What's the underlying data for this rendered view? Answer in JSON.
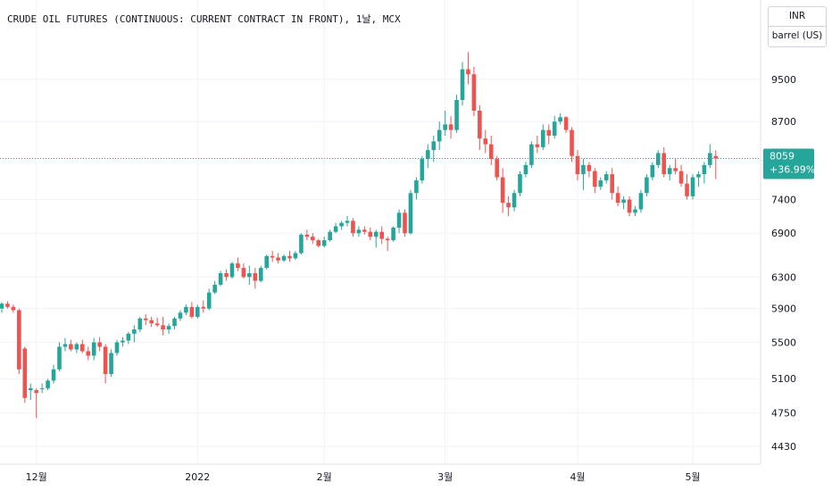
{
  "header": {
    "title": "CRUDE OIL FUTURES (CONTINUOUS: CURRENT CONTRACT IN FRONT), 1날, MCX"
  },
  "unit_selector": {
    "currency": "INR",
    "unit": "barrel (US)"
  },
  "last_price": {
    "value": "8059",
    "change": "+36.99%"
  },
  "colors": {
    "up": "#26a69a",
    "down": "#ef5350",
    "grid": "#f0f3fa",
    "axis_text": "#131722",
    "last_line": "#26a69a"
  },
  "chart_data": {
    "type": "candlestick",
    "title": "CRUDE OIL FUTURES (CONTINUOUS: CURRENT CONTRACT IN FRONT), 1날, MCX",
    "ylim": [
      4350,
      10400
    ],
    "y_ticks": [
      4430,
      4750,
      5100,
      5500,
      5900,
      6300,
      6900,
      7400,
      8059,
      8700,
      9500
    ],
    "y_tick_labels": [
      "4430",
      "4750",
      "5100",
      "5500",
      "5900",
      "6300",
      "6900",
      "7400",
      "",
      "8700",
      "9500"
    ],
    "x_ticks": [
      {
        "label": "12월",
        "index": 6
      },
      {
        "label": "2022",
        "index": 34
      },
      {
        "label": "2월",
        "index": 56
      },
      {
        "label": "3월",
        "index": 77
      },
      {
        "label": "4월",
        "index": 100
      },
      {
        "label": "5월",
        "index": 120
      }
    ],
    "candles": [
      [
        5900,
        5980,
        5850,
        5960
      ],
      [
        5960,
        5990,
        5900,
        5920
      ],
      [
        5920,
        5950,
        5850,
        5880
      ],
      [
        5880,
        5900,
        5150,
        5200
      ],
      [
        5430,
        5450,
        4850,
        4900
      ],
      [
        4980,
        5050,
        4880,
        5000
      ],
      [
        4980,
        5000,
        4700,
        4950
      ],
      [
        5000,
        5050,
        4950,
        5000
      ],
      [
        5000,
        5100,
        4980,
        5080
      ],
      [
        5080,
        5250,
        5050,
        5200
      ],
      [
        5200,
        5500,
        5180,
        5450
      ],
      [
        5450,
        5550,
        5400,
        5480
      ],
      [
        5480,
        5530,
        5400,
        5420
      ],
      [
        5420,
        5500,
        5380,
        5480
      ],
      [
        5480,
        5530,
        5380,
        5400
      ],
      [
        5400,
        5450,
        5300,
        5350
      ],
      [
        5350,
        5550,
        5300,
        5500
      ],
      [
        5500,
        5560,
        5400,
        5450
      ],
      [
        5450,
        5480,
        5050,
        5150
      ],
      [
        5150,
        5420,
        5120,
        5380
      ],
      [
        5380,
        5530,
        5350,
        5500
      ],
      [
        5500,
        5560,
        5450,
        5520
      ],
      [
        5520,
        5620,
        5480,
        5600
      ],
      [
        5600,
        5700,
        5500,
        5650
      ],
      [
        5650,
        5800,
        5620,
        5780
      ],
      [
        5780,
        5830,
        5700,
        5760
      ],
      [
        5760,
        5800,
        5680,
        5720
      ],
      [
        5720,
        5790,
        5680,
        5700
      ],
      [
        5700,
        5800,
        5580,
        5650
      ],
      [
        5650,
        5720,
        5600,
        5690
      ],
      [
        5690,
        5800,
        5650,
        5780
      ],
      [
        5780,
        5880,
        5750,
        5850
      ],
      [
        5850,
        5950,
        5820,
        5920
      ],
      [
        5920,
        5980,
        5780,
        5800
      ],
      [
        5800,
        5950,
        5780,
        5920
      ],
      [
        5920,
        6000,
        5850,
        5900
      ],
      [
        5900,
        6150,
        5880,
        6100
      ],
      [
        6100,
        6250,
        6080,
        6200
      ],
      [
        6200,
        6380,
        6180,
        6350
      ],
      [
        6350,
        6400,
        6250,
        6300
      ],
      [
        6300,
        6500,
        6280,
        6480
      ],
      [
        6480,
        6560,
        6380,
        6420
      ],
      [
        6420,
        6480,
        6280,
        6300
      ],
      [
        6300,
        6450,
        6200,
        6350
      ],
      [
        6350,
        6420,
        6150,
        6250
      ],
      [
        6250,
        6450,
        6230,
        6420
      ],
      [
        6420,
        6600,
        6400,
        6580
      ],
      [
        6580,
        6650,
        6500,
        6560
      ],
      [
        6560,
        6620,
        6480,
        6520
      ],
      [
        6520,
        6600,
        6500,
        6580
      ],
      [
        6580,
        6650,
        6500,
        6550
      ],
      [
        6550,
        6650,
        6530,
        6620
      ],
      [
        6620,
        6900,
        6600,
        6880
      ],
      [
        6880,
        6950,
        6800,
        6850
      ],
      [
        6850,
        6900,
        6750,
        6800
      ],
      [
        6800,
        6820,
        6700,
        6720
      ],
      [
        6720,
        6850,
        6700,
        6800
      ],
      [
        6800,
        6950,
        6780,
        6920
      ],
      [
        6920,
        7050,
        6900,
        7000
      ],
      [
        7000,
        7080,
        6950,
        7050
      ],
      [
        7050,
        7150,
        7000,
        7080
      ],
      [
        7080,
        7120,
        6850,
        6900
      ],
      [
        6900,
        7000,
        6850,
        6950
      ],
      [
        6950,
        7000,
        6880,
        6920
      ],
      [
        6920,
        6980,
        6800,
        6850
      ],
      [
        6850,
        6950,
        6700,
        6920
      ],
      [
        6920,
        7000,
        6750,
        6820
      ],
      [
        6820,
        6850,
        6650,
        6800
      ],
      [
        6800,
        7000,
        6780,
        6980
      ],
      [
        6980,
        7250,
        6900,
        7200
      ],
      [
        7200,
        7250,
        6850,
        6900
      ],
      [
        6900,
        7550,
        6880,
        7500
      ],
      [
        7500,
        7750,
        7400,
        7700
      ],
      [
        7700,
        8100,
        7650,
        8050
      ],
      [
        8050,
        8300,
        7900,
        8200
      ],
      [
        8200,
        8450,
        8000,
        8350
      ],
      [
        8350,
        8700,
        8200,
        8550
      ],
      [
        8550,
        8900,
        8450,
        8650
      ],
      [
        8650,
        8800,
        8400,
        8550
      ],
      [
        8550,
        9200,
        8500,
        9100
      ],
      [
        9100,
        9850,
        9000,
        9700
      ],
      [
        9700,
        10050,
        9400,
        9600
      ],
      [
        9600,
        9750,
        8800,
        8900
      ],
      [
        8900,
        9000,
        8200,
        8400
      ],
      [
        8400,
        8550,
        8150,
        8300
      ],
      [
        8300,
        8450,
        7950,
        8050
      ],
      [
        8050,
        8100,
        7700,
        7750
      ],
      [
        7750,
        7900,
        7200,
        7350
      ],
      [
        7350,
        7450,
        7150,
        7280
      ],
      [
        7280,
        7550,
        7220,
        7500
      ],
      [
        7500,
        7850,
        7450,
        7800
      ],
      [
        7800,
        8000,
        7750,
        7950
      ],
      [
        7950,
        8350,
        7900,
        8300
      ],
      [
        8300,
        8450,
        8150,
        8250
      ],
      [
        8250,
        8650,
        8200,
        8550
      ],
      [
        8550,
        8650,
        8300,
        8450
      ],
      [
        8450,
        8800,
        8400,
        8700
      ],
      [
        8700,
        8850,
        8650,
        8780
      ],
      [
        8780,
        8800,
        8500,
        8550
      ],
      [
        8550,
        8600,
        8000,
        8100
      ],
      [
        8100,
        8200,
        7700,
        7800
      ],
      [
        7800,
        8050,
        7550,
        7950
      ],
      [
        7950,
        8000,
        7750,
        7850
      ],
      [
        7850,
        7900,
        7500,
        7600
      ],
      [
        7600,
        7750,
        7550,
        7700
      ],
      [
        7700,
        7850,
        7650,
        7800
      ],
      [
        7800,
        7900,
        7400,
        7500
      ],
      [
        7500,
        7600,
        7300,
        7350
      ],
      [
        7350,
        7450,
        7250,
        7400
      ],
      [
        7400,
        7450,
        7150,
        7200
      ],
      [
        7200,
        7300,
        7150,
        7250
      ],
      [
        7250,
        7550,
        7200,
        7500
      ],
      [
        7500,
        7800,
        7450,
        7750
      ],
      [
        7750,
        8000,
        7700,
        7950
      ],
      [
        7950,
        8200,
        7900,
        8150
      ],
      [
        8150,
        8250,
        7750,
        7800
      ],
      [
        7800,
        7950,
        7700,
        7900
      ],
      [
        7900,
        8050,
        7800,
        7850
      ],
      [
        7850,
        7950,
        7600,
        7650
      ],
      [
        7650,
        7800,
        7400,
        7450
      ],
      [
        7450,
        7800,
        7400,
        7750
      ],
      [
        7750,
        7850,
        7600,
        7800
      ],
      [
        7800,
        8000,
        7650,
        7950
      ],
      [
        7950,
        8300,
        7900,
        8150
      ],
      [
        8100,
        8200,
        7720,
        8059
      ]
    ],
    "last_value": 8059,
    "last_change_pct": "+36.99%"
  }
}
